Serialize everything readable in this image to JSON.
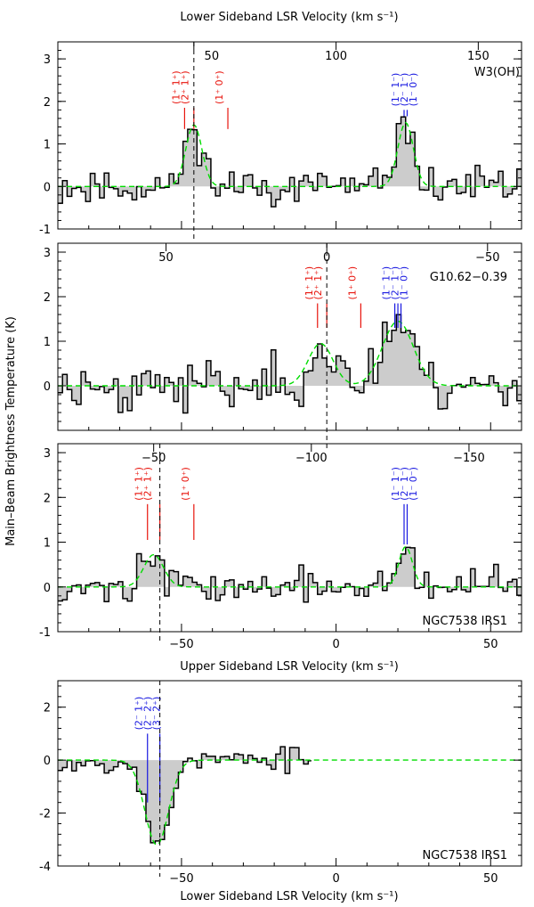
{
  "figure": {
    "top_label": "Lower Sideband LSR Velocity (km s⁻¹)",
    "mid_label": "Upper Sideband LSR Velocity (km s⁻¹)",
    "bottom_label": "Lower Sideband LSR Velocity (km s⁻¹)",
    "ylabel": "Main–Beam Brightness Temperature (K)",
    "colors": {
      "trace": "#000000",
      "fill": "#cccccc",
      "fit": "#00dd00",
      "red": "#e8140c",
      "blue": "#1818e0"
    }
  },
  "chart_data": [
    {
      "type": "line",
      "source": "W3(OH)",
      "ylim": [
        -1,
        3.4
      ],
      "yticks": [
        -1,
        0,
        1,
        2,
        3
      ],
      "xlim": [
        -90,
        60
      ],
      "top_ticks": [
        "50",
        "100",
        "150"
      ],
      "top_tick_values": [
        -50,
        -100,
        -150
      ],
      "top_ref": -46,
      "fit_peaks": [
        {
          "v": -46,
          "amp": 1.45,
          "w": 2.6
        },
        {
          "v": 22.5,
          "amp": 1.5,
          "w": 2.5
        }
      ],
      "noise": 0.22,
      "seed": 11,
      "red_lines": [
        {
          "x": -49,
          "y1": 1.85,
          "y2": 1.35,
          "labels": [
            "(1⁺ 1⁺)",
            "(2⁺ 1⁺)"
          ]
        },
        {
          "x": -46,
          "y1": 1.85,
          "y2": 1.35,
          "labels": []
        },
        {
          "x": -35,
          "y1": 1.85,
          "y2": 1.35,
          "labels": [
            "(1⁺ 0⁺)"
          ]
        }
      ],
      "blue_lines": [
        {
          "x": 22,
          "y1": 1.8,
          "y2": 1.65,
          "labels": [
            "(1⁻ 1⁻)",
            "(2⁻ 1⁻)",
            "(1⁻ 0⁻)"
          ]
        },
        {
          "x": 23,
          "y1": 1.8,
          "y2": 1.65,
          "labels": []
        }
      ]
    },
    {
      "type": "line",
      "source": "G10.62−0.39",
      "ylim": [
        -1,
        3.2
      ],
      "yticks": [
        0,
        1,
        2,
        3
      ],
      "xlim": [
        -90,
        60
      ],
      "top_ticks": [
        "50",
        "0",
        "−50"
      ],
      "top_tick_values": [
        50,
        0,
        -50
      ],
      "top_ref": -3,
      "fit_peaks": [
        {
          "v": -5,
          "amp": 0.95,
          "w": 4.0
        },
        {
          "v": 20,
          "amp": 1.45,
          "w": 5.0
        }
      ],
      "noise": 0.3,
      "seed": 23,
      "red_lines": [
        {
          "x": -6,
          "y1": 1.85,
          "y2": 1.3,
          "labels": [
            "(1⁺ 1⁺)",
            "(2⁺ 1⁺)"
          ]
        },
        {
          "x": -3,
          "y1": 1.85,
          "y2": 1.3,
          "labels": []
        },
        {
          "x": 8,
          "y1": 1.85,
          "y2": 1.3,
          "labels": [
            "(1⁺ 0⁺)"
          ]
        }
      ],
      "blue_lines": [
        {
          "x": 19,
          "y1": 1.85,
          "y2": 1.3,
          "labels": [
            "(1⁻ 1⁻)",
            "(2⁻ 1⁻)",
            "(1⁻ 0⁻)"
          ]
        },
        {
          "x": 20,
          "y1": 1.85,
          "y2": 1.3,
          "labels": []
        },
        {
          "x": 21,
          "y1": 1.85,
          "y2": 1.3,
          "labels": []
        }
      ]
    },
    {
      "type": "line",
      "source": "NGC7538 IRS1",
      "ylim": [
        -1,
        3.2
      ],
      "yticks": [
        -1,
        0,
        1,
        2,
        3
      ],
      "xlim": [
        -90,
        60
      ],
      "xticks": [
        -50,
        0,
        50
      ],
      "top_ticks": [
        "−50",
        "−100",
        "−150"
      ],
      "top_tick_values": [
        -50,
        -100,
        -150
      ],
      "top_ref": -57,
      "fit_peaks": [
        {
          "v": -59,
          "amp": 0.72,
          "w": 3.2
        },
        {
          "v": 22.5,
          "amp": 0.9,
          "w": 2.2
        }
      ],
      "noise": 0.2,
      "seed": 37,
      "red_lines": [
        {
          "x": -61,
          "y1": 1.85,
          "y2": 1.05,
          "labels": [
            "(1⁺ 1⁺)",
            "(2⁺ 1⁺)"
          ]
        },
        {
          "x": -57,
          "y1": 1.85,
          "y2": 1.05,
          "labels": []
        },
        {
          "x": -46,
          "y1": 1.85,
          "y2": 1.05,
          "labels": [
            "(1⁺ 0⁺)"
          ]
        }
      ],
      "blue_lines": [
        {
          "x": 22,
          "y1": 1.85,
          "y2": 0.95,
          "labels": [
            "(1⁻ 1⁻)",
            "(2⁻ 1⁻)",
            "(1⁻ 0⁻)"
          ]
        },
        {
          "x": 23,
          "y1": 1.85,
          "y2": 0.95,
          "labels": []
        }
      ]
    },
    {
      "type": "line",
      "source": "NGC7538 IRS1",
      "ylim": [
        -4,
        3
      ],
      "yticks": [
        -4,
        -2,
        0,
        2
      ],
      "xlim": [
        -90,
        60
      ],
      "xticks": [
        -50,
        0,
        50
      ],
      "top_ref": -57,
      "data_end": -8,
      "fit_peaks": [
        {
          "v": -58,
          "amp": -3.2,
          "w": 3.8
        }
      ],
      "noise": 0.25,
      "seed": 53,
      "blue_lines": [
        {
          "x": -61,
          "y1": 1.0,
          "y2": -1.6,
          "labels": [
            "(2⁻ 1⁺)",
            "(2⁻ 2⁺)",
            "(3⁻ 2⁺)"
          ]
        },
        {
          "x": -57,
          "y1": 1.0,
          "y2": -1.6,
          "labels": []
        }
      ]
    }
  ]
}
